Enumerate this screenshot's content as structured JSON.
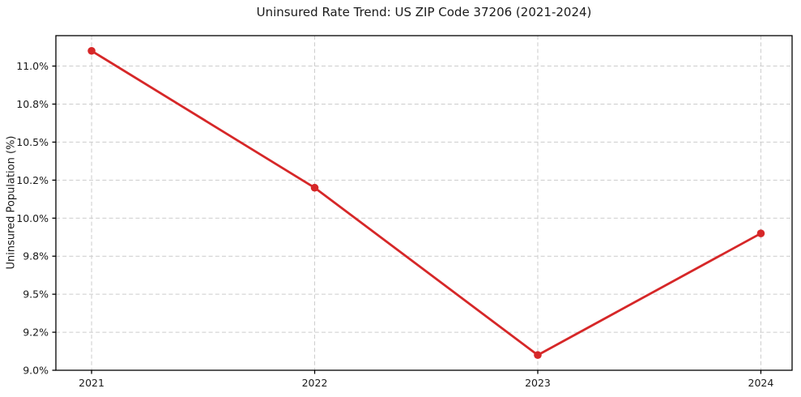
{
  "chart_data": {
    "type": "line",
    "title": "Uninsured Rate Trend: US ZIP Code 37206 (2021-2024)",
    "xlabel": "",
    "ylabel": "Uninsured Population (%)",
    "x": [
      2021,
      2022,
      2023,
      2024
    ],
    "values": [
      11.1,
      10.2,
      9.1,
      9.9
    ],
    "series_name": "Uninsured rate",
    "xlim": [
      2020.84,
      2024.14
    ],
    "ylim": [
      9.0,
      11.2
    ],
    "xticks": [
      {
        "value": 2021,
        "label": "2021"
      },
      {
        "value": 2022,
        "label": "2022"
      },
      {
        "value": 2023,
        "label": "2023"
      },
      {
        "value": 2024,
        "label": "2024"
      }
    ],
    "yticks": [
      {
        "value": 9.0,
        "label": "9.0%"
      },
      {
        "value": 9.25,
        "label": "9.2%"
      },
      {
        "value": 9.5,
        "label": "9.5%"
      },
      {
        "value": 9.75,
        "label": "9.8%"
      },
      {
        "value": 10.0,
        "label": "10.0%"
      },
      {
        "value": 10.25,
        "label": "10.2%"
      },
      {
        "value": 10.5,
        "label": "10.5%"
      },
      {
        "value": 10.75,
        "label": "10.8%"
      },
      {
        "value": 11.0,
        "label": "11.0%"
      }
    ],
    "grid": true,
    "grid_style": "dashed",
    "legend": false,
    "colors": {
      "line": "#d62728",
      "marker": "#d62728",
      "grid": "#cccccc",
      "axis": "#000000",
      "text": "#1a1a1a",
      "background": "#ffffff"
    }
  }
}
